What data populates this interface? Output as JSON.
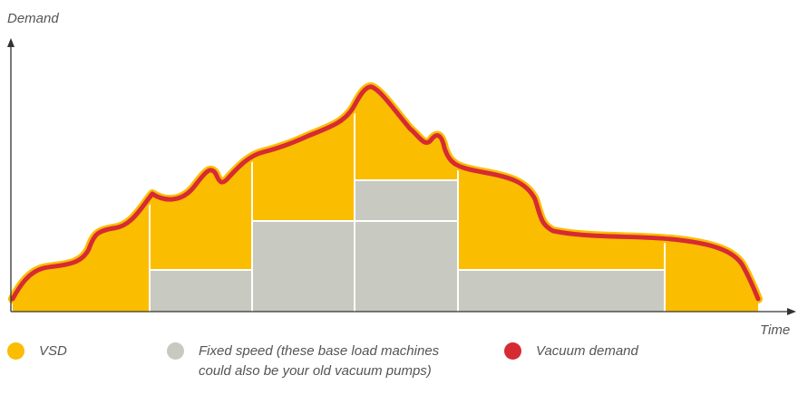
{
  "axes": {
    "y_label": "Demand",
    "x_label": "Time"
  },
  "legend": {
    "vsd": {
      "label": "VSD",
      "color": "#fbbd00"
    },
    "fixed": {
      "label": "Fixed speed (these base load machines could also be your old vacuum pumps)",
      "color": "#c8c9c0"
    },
    "demand": {
      "label": "Vacuum demand",
      "color": "#d72b33"
    }
  },
  "colors": {
    "vsd_fill": "#fbbd00",
    "fixed_fill": "#c8c9c0",
    "demand_line": "#d72b33",
    "axis": "#333333",
    "divider": "#ffffff"
  }
}
